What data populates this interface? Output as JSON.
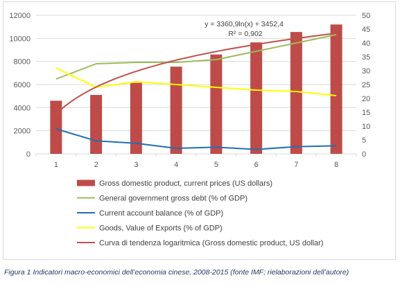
{
  "chart_data": {
    "type": "bar+line",
    "categories": [
      "1",
      "2",
      "3",
      "4",
      "5",
      "6",
      "7",
      "8"
    ],
    "y_left": {
      "ticks": [
        "0",
        "2000",
        "4000",
        "6000",
        "8000",
        "10000",
        "12000"
      ],
      "ylim": [
        0,
        12000
      ]
    },
    "y_right": {
      "ticks": [
        "0",
        "5",
        "10",
        "15",
        "20",
        "25",
        "30",
        "35",
        "40",
        "45",
        "50"
      ],
      "ylim": [
        0,
        50
      ]
    },
    "grid": true,
    "legend_position": "bottom",
    "series": [
      {
        "name": "Gross domestic product, current prices (US dollars)",
        "kind": "bar",
        "axis": "left",
        "color": "#be4b48",
        "values": [
          4600,
          5100,
          6150,
          7550,
          8600,
          9650,
          10550,
          11200
        ]
      },
      {
        "name": "General government gross debt (% of GDP)",
        "kind": "line",
        "axis": "right",
        "color": "#9bbb59",
        "values": [
          27,
          32.5,
          33,
          33,
          34,
          37,
          40,
          43
        ]
      },
      {
        "name": "Current account balance (% of GDP)",
        "kind": "line",
        "axis": "right",
        "color": "#1f6fb5",
        "values": [
          9,
          4.7,
          3.8,
          2,
          2.4,
          1.6,
          2.6,
          2.9
        ]
      },
      {
        "name": "Goods, Value of Exports (% of GDP)",
        "kind": "line",
        "axis": "right",
        "color": "#ffff00",
        "values": [
          31,
          24,
          26,
          25,
          24,
          23,
          22.5,
          21
        ]
      },
      {
        "name": "Curva di tendenza logaritmica (Gross domestic product, US dollar)",
        "kind": "trend-log",
        "axis": "left",
        "color": "#c0504d",
        "a": 3360.9,
        "b": 3452.4
      }
    ],
    "annotations": [
      "y = 3360,9ln(x) + 3452,4",
      "R² = 0,902"
    ]
  },
  "caption": "Figura 1 Indicatori macro-economici dell’economia cinese, 2008-2015 (fonte IMF; rielaborazioni dell’autore)"
}
